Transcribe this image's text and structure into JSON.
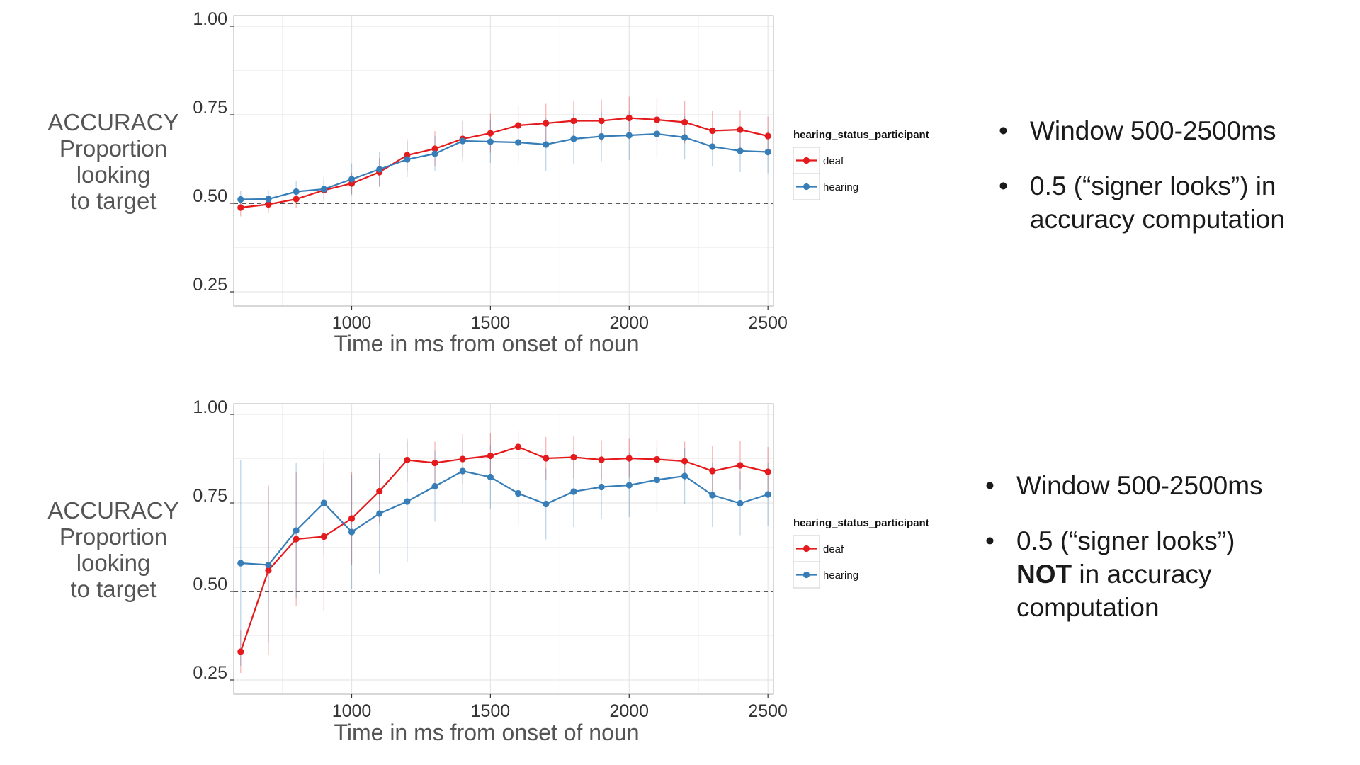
{
  "charts_common": {
    "ylabel_lines": [
      "ACCURACY",
      "Proportion",
      "looking",
      "to target"
    ],
    "xlabel": "Time in ms from onset of noun",
    "legend_title": "hearing_status_participant",
    "colors": {
      "deaf": "#e41a1c",
      "hearing": "#377eb8"
    }
  },
  "chart_data": [
    {
      "type": "line",
      "x": [
        600,
        700,
        800,
        900,
        1000,
        1100,
        1200,
        1300,
        1400,
        1500,
        1600,
        1700,
        1800,
        1900,
        2000,
        2100,
        2200,
        2300,
        2400,
        2500
      ],
      "series": [
        {
          "name": "deaf",
          "values": [
            0.488,
            0.497,
            0.512,
            0.537,
            0.556,
            0.588,
            0.636,
            0.654,
            0.682,
            0.698,
            0.72,
            0.726,
            0.733,
            0.733,
            0.741,
            0.736,
            0.729,
            0.705,
            0.708,
            0.69
          ],
          "err": [
            0.025,
            0.025,
            0.025,
            0.03,
            0.03,
            0.04,
            0.045,
            0.05,
            0.05,
            0.055,
            0.055,
            0.055,
            0.055,
            0.06,
            0.06,
            0.06,
            0.06,
            0.055,
            0.055,
            0.055
          ]
        },
        {
          "name": "hearing",
          "values": [
            0.511,
            0.512,
            0.533,
            0.54,
            0.568,
            0.596,
            0.624,
            0.64,
            0.676,
            0.674,
            0.672,
            0.666,
            0.682,
            0.689,
            0.692,
            0.696,
            0.686,
            0.66,
            0.648,
            0.645
          ],
          "err": [
            0.025,
            0.025,
            0.03,
            0.035,
            0.045,
            0.05,
            0.05,
            0.05,
            0.06,
            0.06,
            0.06,
            0.075,
            0.07,
            0.07,
            0.07,
            0.065,
            0.06,
            0.055,
            0.06,
            0.06
          ]
        }
      ],
      "hline": 0.5,
      "xlim": [
        575,
        2520
      ],
      "ylim": [
        0.21,
        1.03
      ],
      "yticks": [
        0.25,
        0.5,
        0.75,
        1.0
      ],
      "ytick_labels": [
        "0.25",
        "0.50",
        "0.75",
        "1.00"
      ],
      "xticks": [
        1000,
        1500,
        2000,
        2500
      ],
      "xtick_labels": [
        "1000",
        "1500",
        "2000",
        "2500"
      ],
      "grid": true,
      "legend_position": "right"
    },
    {
      "type": "line",
      "x": [
        600,
        700,
        800,
        900,
        1000,
        1100,
        1200,
        1300,
        1400,
        1500,
        1600,
        1700,
        1800,
        1900,
        2000,
        2100,
        2200,
        2300,
        2400,
        2500
      ],
      "series": [
        {
          "name": "deaf",
          "values": [
            0.33,
            0.56,
            0.648,
            0.655,
            0.706,
            0.783,
            0.871,
            0.863,
            0.874,
            0.883,
            0.908,
            0.876,
            0.879,
            0.872,
            0.876,
            0.873,
            0.868,
            0.84,
            0.856,
            0.838
          ],
          "err": [
            0.06,
            0.24,
            0.19,
            0.21,
            0.13,
            0.09,
            0.06,
            0.06,
            0.07,
            0.065,
            0.045,
            0.06,
            0.06,
            0.055,
            0.055,
            0.055,
            0.055,
            0.07,
            0.07,
            0.07
          ]
        },
        {
          "name": "hearing",
          "values": [
            0.58,
            0.575,
            0.672,
            0.75,
            0.668,
            0.72,
            0.754,
            0.797,
            0.84,
            0.823,
            0.777,
            0.747,
            0.782,
            0.795,
            0.8,
            0.815,
            0.826,
            0.772,
            0.749,
            0.774
          ],
          "err": [
            0.29,
            0.22,
            0.19,
            0.15,
            0.16,
            0.17,
            0.17,
            0.1,
            0.09,
            0.09,
            0.09,
            0.1,
            0.1,
            0.09,
            0.09,
            0.09,
            0.08,
            0.09,
            0.09,
            0.09
          ]
        }
      ],
      "hline": 0.5,
      "xlim": [
        575,
        2520
      ],
      "ylim": [
        0.21,
        1.03
      ],
      "yticks": [
        0.25,
        0.5,
        0.75,
        1.0
      ],
      "ytick_labels": [
        "0.25",
        "0.50",
        "0.75",
        "1.00"
      ],
      "xticks": [
        1000,
        1500,
        2000,
        2500
      ],
      "xtick_labels": [
        "1000",
        "1500",
        "2000",
        "2500"
      ],
      "grid": true,
      "legend_position": "right"
    }
  ],
  "notes_top": [
    "Window 500-2500ms",
    "0.5 (“signer looks”) in accuracy computation"
  ],
  "notes_bottom": {
    "item1": "Window 500-2500ms",
    "item2_a": "0.5 (“signer looks”)",
    "item2_strong": "NOT",
    "item2_b": " in accuracy computation"
  }
}
